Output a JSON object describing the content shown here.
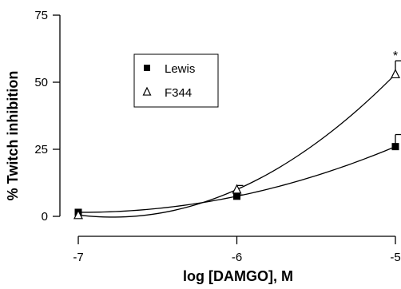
{
  "chart_data": {
    "type": "line",
    "title": "",
    "xlabel": "log [DAMGO], M",
    "ylabel": "% Twitch inhibition",
    "xlim": [
      -7,
      -5
    ],
    "ylim": [
      0,
      75
    ],
    "xticks": [
      -7,
      -6,
      -5
    ],
    "xtick_labels": [
      "-7",
      "-6",
      "-5"
    ],
    "yticks": [
      0,
      25,
      50,
      75
    ],
    "ytick_labels": [
      "0",
      "25",
      "50",
      "75"
    ],
    "grid": false,
    "legend_position": "upper-left",
    "x": [
      -7,
      -6,
      -5
    ],
    "series": [
      {
        "name": "Lewis",
        "marker": "filled-square",
        "values": [
          1.5,
          7.5,
          26
        ],
        "error": [
          0,
          0.5,
          4.5
        ]
      },
      {
        "name": "F344",
        "marker": "open-triangle",
        "values": [
          0.5,
          10,
          53
        ],
        "error": [
          0,
          1.5,
          5
        ]
      }
    ],
    "annotations": [
      {
        "text": "*",
        "x": -5,
        "y": 59
      }
    ]
  }
}
